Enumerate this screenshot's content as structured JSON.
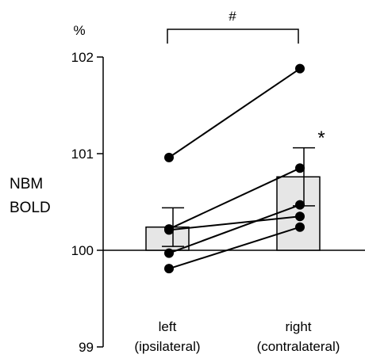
{
  "chart_data": {
    "type": "bar",
    "unit_label": "%",
    "ylabel_lines": [
      "NBM",
      "BOLD"
    ],
    "ylim": [
      99,
      102
    ],
    "yticks": [
      99,
      100,
      101,
      102
    ],
    "baseline": 100,
    "categories": [
      {
        "lines": [
          "left",
          "(ipsilateral)"
        ]
      },
      {
        "lines": [
          "right",
          "(contralateral)"
        ]
      }
    ],
    "bars": [
      {
        "value": 100.24,
        "error": 0.2
      },
      {
        "value": 100.76,
        "error": 0.3
      }
    ],
    "subjects": [
      {
        "left": 100.96,
        "right": 101.88
      },
      {
        "left": 100.22,
        "right": 100.85
      },
      {
        "left": 100.21,
        "right": 100.35
      },
      {
        "left": 99.97,
        "right": 100.47
      },
      {
        "left": 99.81,
        "right": 100.24
      }
    ],
    "bracket_label": "#",
    "significance_label": "*",
    "colors": {
      "bar_fill": "#e6e6e6",
      "stroke": "#000000"
    }
  }
}
